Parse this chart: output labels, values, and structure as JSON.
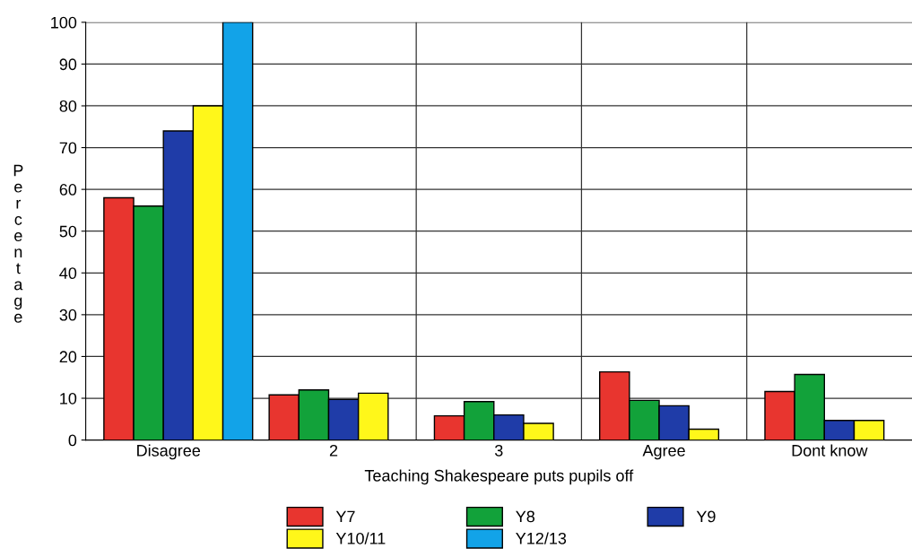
{
  "chart_data": {
    "type": "bar",
    "xlabel": "Teaching Shakespeare puts pupils off",
    "ylabel": "Percentage",
    "categories": [
      "Disagree",
      "2",
      "3",
      "Agree",
      "Dont know"
    ],
    "series": [
      {
        "name": "Y7",
        "color": "#e8352f",
        "values": [
          58,
          10.8,
          5.8,
          16.3,
          11.6
        ]
      },
      {
        "name": "Y8",
        "color": "#12a23a",
        "values": [
          56,
          12,
          9.2,
          9.5,
          15.7
        ]
      },
      {
        "name": "Y9",
        "color": "#1f3ca8",
        "values": [
          74,
          9.7,
          6,
          8.2,
          4.7
        ]
      },
      {
        "name": "Y10/11",
        "color": "#fff71a",
        "values": [
          80,
          11.2,
          4,
          2.6,
          4.7
        ]
      },
      {
        "name": "Y12/13",
        "color": "#12a3e8",
        "values": [
          100,
          0,
          0,
          0,
          0
        ]
      }
    ],
    "ylim": [
      0,
      100
    ],
    "yticks": [
      0,
      10,
      20,
      30,
      40,
      50,
      60,
      70,
      80,
      90,
      100
    ],
    "grid": true,
    "legend": "bottom"
  }
}
